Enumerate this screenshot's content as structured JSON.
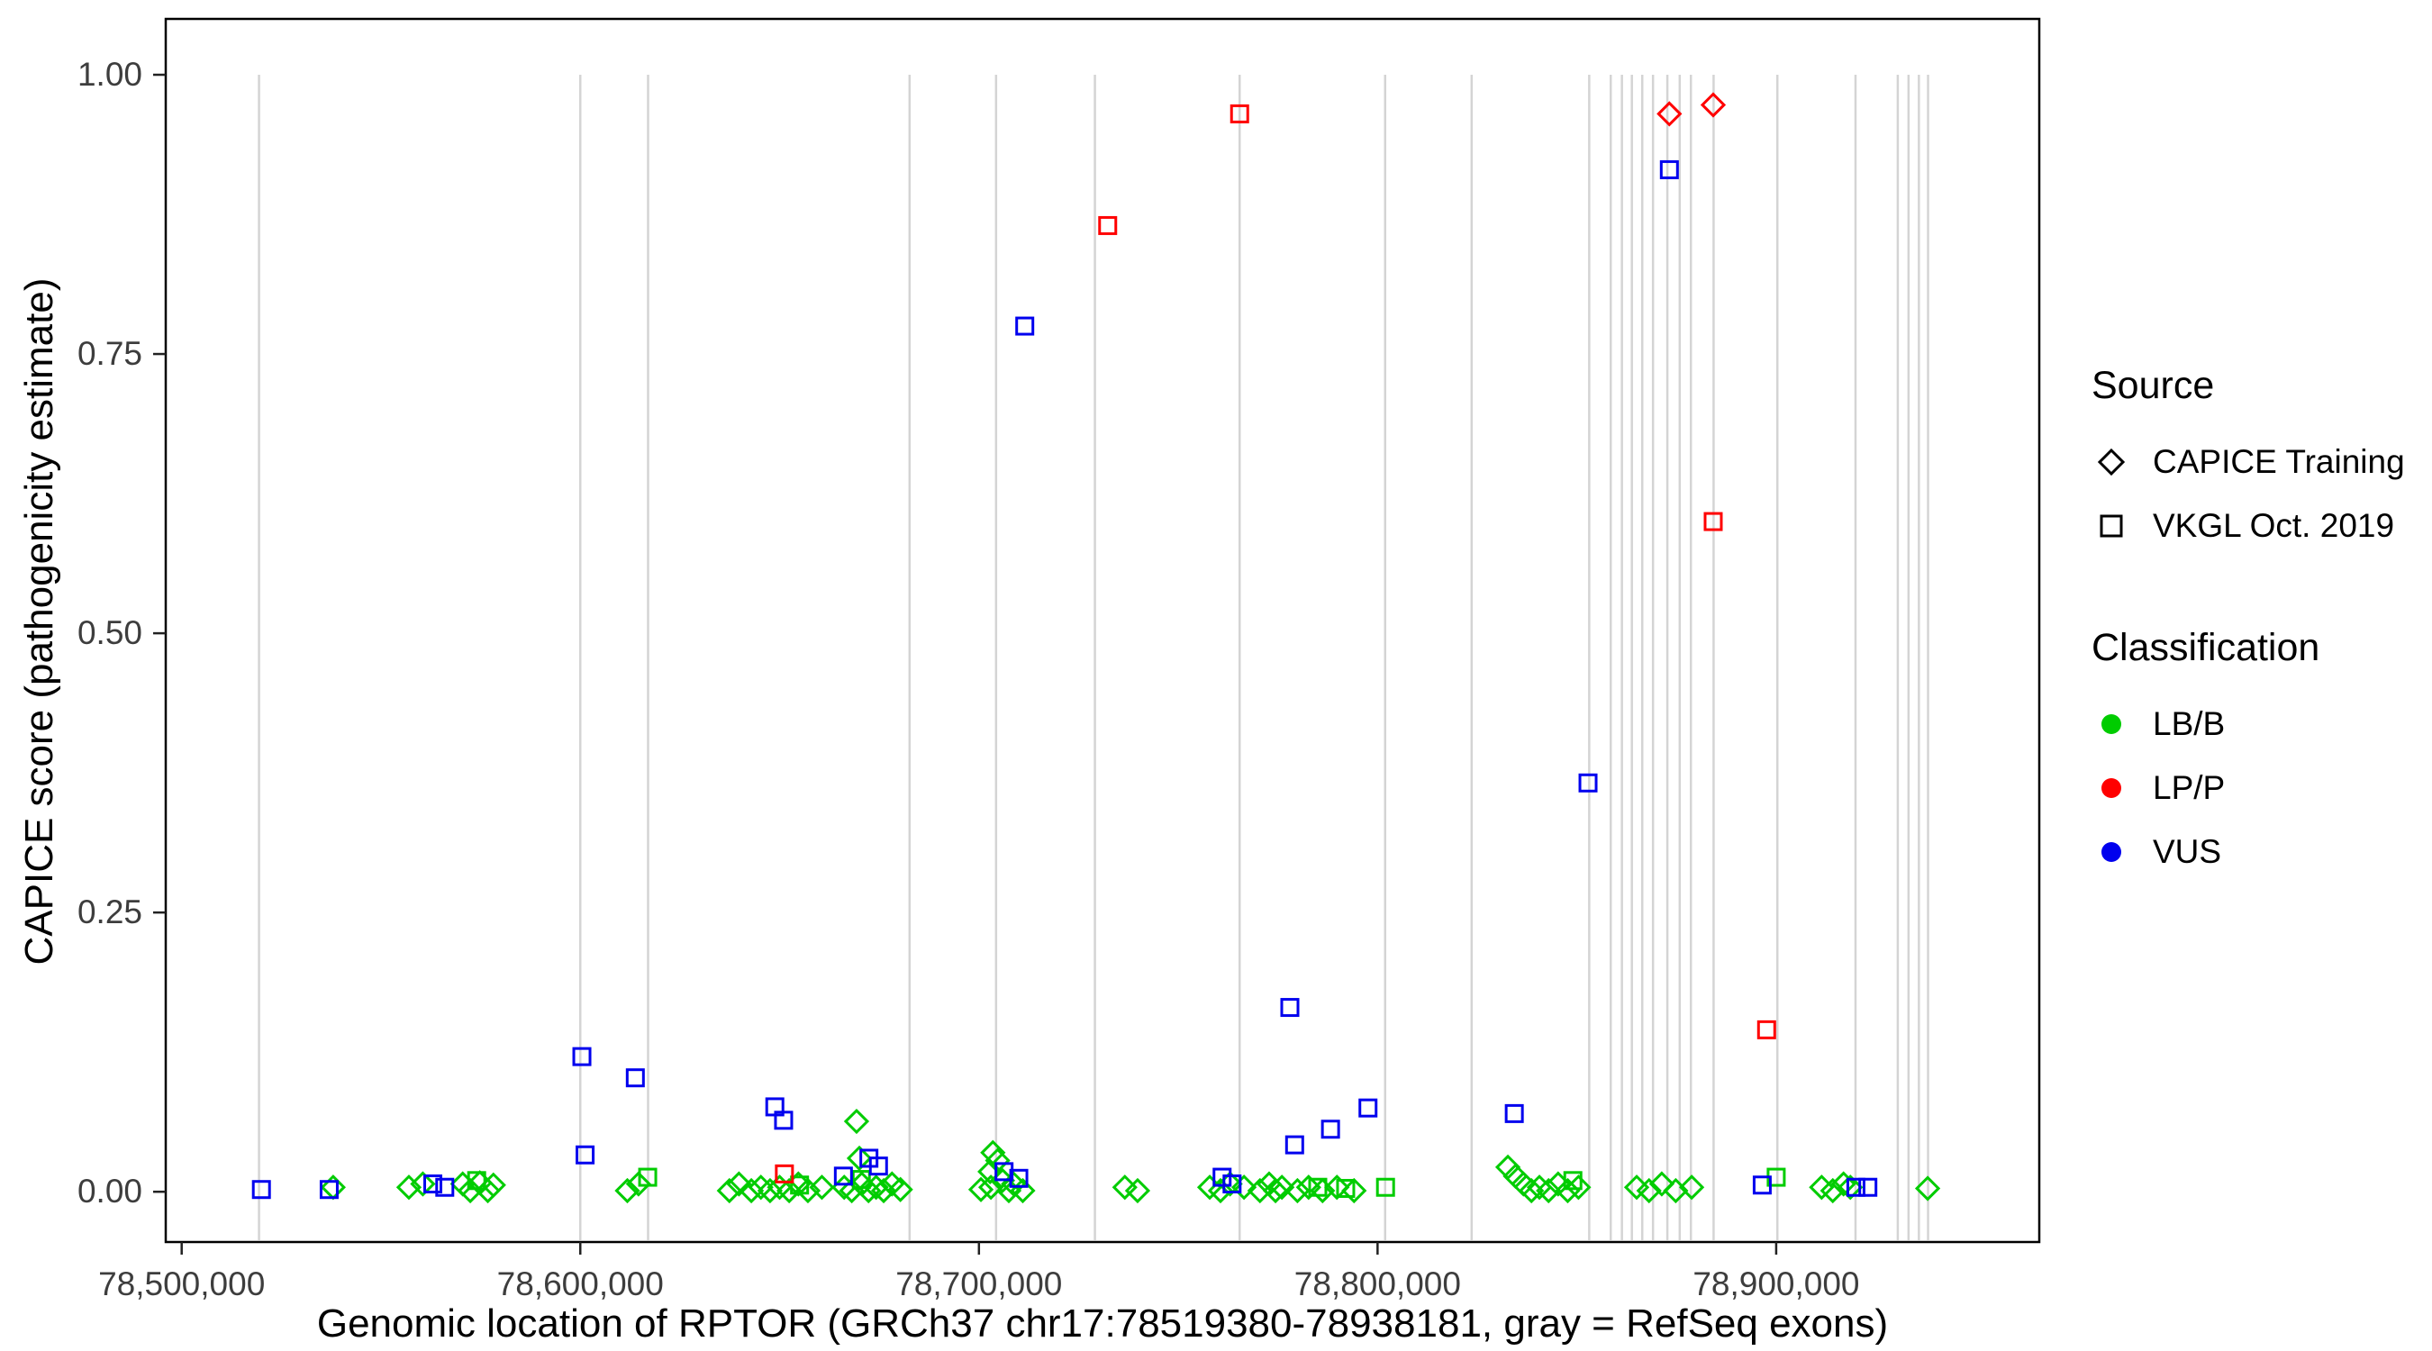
{
  "legend": {
    "source": {
      "title": "Source",
      "items": [
        {
          "label": "CAPICE Training",
          "shape": "diamond"
        },
        {
          "label": "VKGL Oct. 2019",
          "shape": "square"
        }
      ]
    },
    "classification": {
      "title": "Classification",
      "items": [
        {
          "label": "LB/B",
          "color": "#00CC00"
        },
        {
          "label": "LP/P",
          "color": "#FF0000"
        },
        {
          "label": "VUS",
          "color": "#0000EE"
        }
      ]
    }
  },
  "chart_data": {
    "type": "scatter",
    "title": "",
    "xlabel": "Genomic location of RPTOR (GRCh37 chr17:78519380-78938181, gray = RefSeq exons)",
    "ylabel": "CAPICE score (pathogenicity estimate)",
    "xlim": [
      78496000,
      78966000
    ],
    "ylim": [
      -0.045,
      1.05
    ],
    "x_ticks": [
      78500000,
      78600000,
      78700000,
      78800000,
      78900000
    ],
    "x_tick_labels": [
      "78,500,000",
      "78,600,000",
      "78,700,000",
      "78,800,000",
      "78,900,000"
    ],
    "y_ticks": [
      0.0,
      0.25,
      0.5,
      0.75,
      1.0
    ],
    "y_tick_labels": [
      "0.00",
      "0.25",
      "0.50",
      "0.75",
      "1.00"
    ],
    "grid": "off",
    "legend_position": "right",
    "exon_color": "#d4d4d4",
    "exon_lines_x": [
      78519400,
      78600000,
      78617000,
      78682600,
      78704300,
      78729100,
      78765400,
      78801900,
      78823600,
      78853100,
      78858500,
      78861300,
      78863800,
      78866400,
      78869100,
      78872700,
      78875800,
      78878600,
      78884300,
      78900300,
      78919900,
      78930500,
      78933200,
      78935800,
      78938100
    ],
    "series": [
      {
        "name": "CAPICE Training / LB/B",
        "source": "CAPICE Training",
        "classification": "LB/B",
        "shape": "diamond",
        "color": "#00CC00",
        "points": [
          [
            78538000,
            0.004
          ],
          [
            78557000,
            0.004
          ],
          [
            78560500,
            0.007
          ],
          [
            78570500,
            0.007
          ],
          [
            78572400,
            0.001
          ],
          [
            78574800,
            0.008
          ],
          [
            78576800,
            0.001
          ],
          [
            78578200,
            0.006
          ],
          [
            78611800,
            0.001
          ],
          [
            78614600,
            0.007
          ],
          [
            78637400,
            0.001
          ],
          [
            78639800,
            0.007
          ],
          [
            78642900,
            0.001
          ],
          [
            78645300,
            0.004
          ],
          [
            78647600,
            0.001
          ],
          [
            78650000,
            0.004
          ],
          [
            78652400,
            0.001
          ],
          [
            78654700,
            0.007
          ],
          [
            78657100,
            0.001
          ],
          [
            78660600,
            0.004
          ],
          [
            78669300,
            0.063
          ],
          [
            78670000,
            0.03
          ],
          [
            78666200,
            0.004
          ],
          [
            78668100,
            0.001
          ],
          [
            78670600,
            0.007
          ],
          [
            78672300,
            0.001
          ],
          [
            78674200,
            0.004
          ],
          [
            78676100,
            0.001
          ],
          [
            78678200,
            0.007
          ],
          [
            78680300,
            0.002
          ],
          [
            78700500,
            0.002
          ],
          [
            78702800,
            0.018
          ],
          [
            78703500,
            0.035
          ],
          [
            78704700,
            0.028
          ],
          [
            78705900,
            0.01
          ],
          [
            78707500,
            0.001
          ],
          [
            78708700,
            0.007
          ],
          [
            78711000,
            0.001
          ],
          [
            78703000,
            0.004
          ],
          [
            78736600,
            0.004
          ],
          [
            78739800,
            0.001
          ],
          [
            78757900,
            0.004
          ],
          [
            78760600,
            0.001
          ],
          [
            78763000,
            0.007
          ],
          [
            78766500,
            0.004
          ],
          [
            78770500,
            0.001
          ],
          [
            78772800,
            0.007
          ],
          [
            78774400,
            0.001
          ],
          [
            78776000,
            0.004
          ],
          [
            78779900,
            0.001
          ],
          [
            78782700,
            0.004
          ],
          [
            78786200,
            0.001
          ],
          [
            78789800,
            0.004
          ],
          [
            78794100,
            0.001
          ],
          [
            78832700,
            0.022
          ],
          [
            78834600,
            0.014
          ],
          [
            78836600,
            0.007
          ],
          [
            78838600,
            0.001
          ],
          [
            78840600,
            0.004
          ],
          [
            78842900,
            0.001
          ],
          [
            78845300,
            0.007
          ],
          [
            78847700,
            0.001
          ],
          [
            78850400,
            0.004
          ],
          [
            78865000,
            0.004
          ],
          [
            78868100,
            0.001
          ],
          [
            78871300,
            0.007
          ],
          [
            78874800,
            0.001
          ],
          [
            78878800,
            0.004
          ],
          [
            78911400,
            0.004
          ],
          [
            78914200,
            0.001
          ],
          [
            78916900,
            0.007
          ],
          [
            78918600,
            0.004
          ],
          [
            78938000,
            0.003
          ]
        ]
      },
      {
        "name": "VKGL Oct. 2019 / LB/B",
        "source": "VKGL Oct. 2019",
        "classification": "LB/B",
        "shape": "square",
        "color": "#00CC00",
        "points": [
          [
            78574000,
            0.01
          ],
          [
            78616900,
            0.013
          ],
          [
            78655000,
            0.006
          ],
          [
            78670500,
            0.011
          ],
          [
            78785000,
            0.004
          ],
          [
            78792000,
            0.003
          ],
          [
            78802000,
            0.004
          ],
          [
            78849000,
            0.01
          ],
          [
            78900000,
            0.013
          ]
        ]
      },
      {
        "name": "VKGL Oct. 2019 / VUS",
        "source": "VKGL Oct. 2019",
        "classification": "VUS",
        "shape": "square",
        "color": "#0000EE",
        "points": [
          [
            78520000,
            0.002
          ],
          [
            78537000,
            0.002
          ],
          [
            78563000,
            0.007
          ],
          [
            78566000,
            0.004
          ],
          [
            78600400,
            0.121
          ],
          [
            78601200,
            0.033
          ],
          [
            78613800,
            0.102
          ],
          [
            78648800,
            0.076
          ],
          [
            78651000,
            0.064
          ],
          [
            78666000,
            0.014
          ],
          [
            78672400,
            0.03
          ],
          [
            78674800,
            0.023
          ],
          [
            78706300,
            0.018
          ],
          [
            78710000,
            0.012
          ],
          [
            78711500,
            0.775
          ],
          [
            78761000,
            0.013
          ],
          [
            78763500,
            0.007
          ],
          [
            78778000,
            0.165
          ],
          [
            78779200,
            0.042
          ],
          [
            78788200,
            0.056
          ],
          [
            78797600,
            0.075
          ],
          [
            78834300,
            0.07
          ],
          [
            78852800,
            0.366
          ],
          [
            78873200,
            0.915
          ],
          [
            78896500,
            0.006
          ],
          [
            78920000,
            0.004
          ],
          [
            78923000,
            0.004
          ]
        ]
      },
      {
        "name": "VKGL Oct. 2019 / LP/P",
        "source": "VKGL Oct. 2019",
        "classification": "LP/P",
        "shape": "square",
        "color": "#FF0000",
        "points": [
          [
            78651200,
            0.016
          ],
          [
            78732300,
            0.865
          ],
          [
            78765400,
            0.965
          ],
          [
            78884200,
            0.6
          ],
          [
            78897600,
            0.145
          ]
        ]
      },
      {
        "name": "CAPICE Training / LP/P",
        "source": "CAPICE Training",
        "classification": "LP/P",
        "shape": "diamond",
        "color": "#FF0000",
        "points": [
          [
            78873200,
            0.965
          ],
          [
            78884200,
            0.973
          ]
        ]
      }
    ]
  }
}
